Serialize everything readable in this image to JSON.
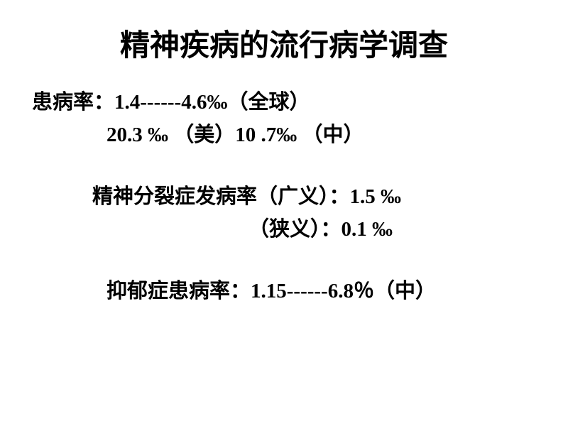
{
  "title": "精神疾病的流行病学调查",
  "lines": {
    "line1": "患病率：1.4------4.6‰（全球）",
    "line2": "20.3 ‰ （美）10 .7‰ （中）",
    "line3": "精神分裂症发病率（广义）：1.5 ‰",
    "line4": "（狭义）：0.1 ‰",
    "line5": "抑郁症患病率：1.15------6.8％（中）"
  },
  "styles": {
    "title_fontsize": 42,
    "body_fontsize": 29,
    "title_color": "#000000",
    "body_color": "#000000",
    "background_color": "#ffffff"
  }
}
